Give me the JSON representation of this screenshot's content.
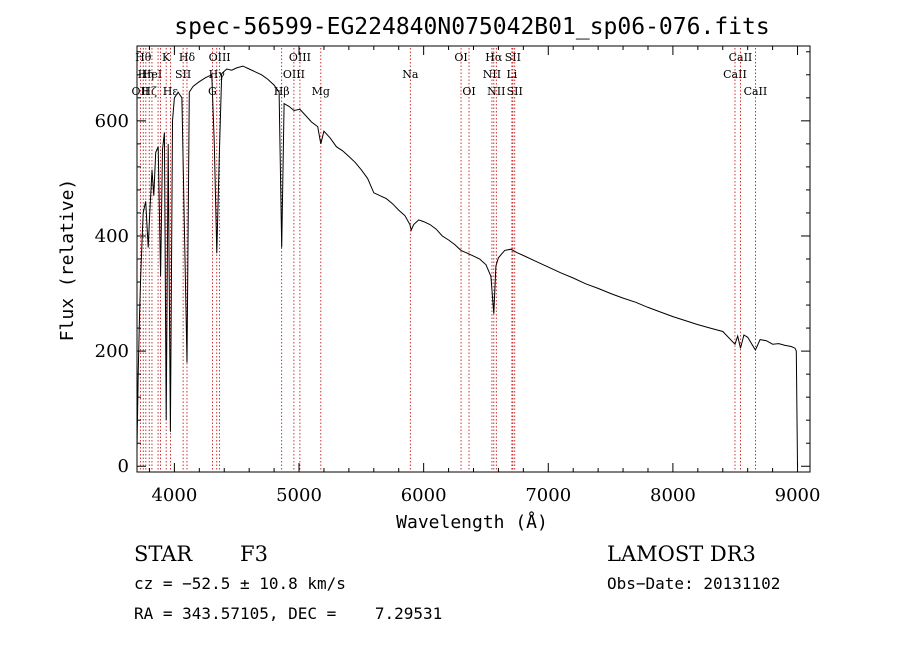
{
  "chart_data": {
    "type": "line",
    "title": "spec-56599-EG224840N075042B01_sp06-076.fits",
    "xlabel": "Wavelength (Å)",
    "ylabel": "Flux (relative)",
    "xlim": [
      3700,
      9100
    ],
    "ylim": [
      -10,
      730
    ],
    "x_ticks": [
      4000,
      5000,
      6000,
      7000,
      8000,
      9000
    ],
    "y_ticks": [
      0,
      200,
      400,
      600
    ],
    "grid": false,
    "series": [
      {
        "name": "spectrum",
        "x": [
          3700,
          3710,
          3720,
          3730,
          3740,
          3750,
          3770,
          3790,
          3800,
          3820,
          3835,
          3850,
          3870,
          3889,
          3905,
          3920,
          3934,
          3950,
          3968,
          3985,
          4000,
          4030,
          4060,
          4101,
          4120,
          4150,
          4200,
          4250,
          4300,
          4320,
          4340,
          4360,
          4380,
          4420,
          4460,
          4500,
          4550,
          4600,
          4650,
          4700,
          4750,
          4800,
          4840,
          4861,
          4880,
          4920,
          4960,
          5007,
          5050,
          5100,
          5150,
          5175,
          5200,
          5250,
          5300,
          5350,
          5400,
          5450,
          5500,
          5550,
          5600,
          5650,
          5700,
          5750,
          5800,
          5850,
          5890,
          5900,
          5920,
          5960,
          6000,
          6050,
          6100,
          6150,
          6200,
          6250,
          6300,
          6350,
          6400,
          6450,
          6500,
          6540,
          6563,
          6580,
          6600,
          6650,
          6700,
          6750,
          6800,
          6900,
          7000,
          7100,
          7200,
          7300,
          7400,
          7500,
          7600,
          7700,
          7800,
          7900,
          8000,
          8100,
          8200,
          8300,
          8400,
          8498,
          8520,
          8542,
          8570,
          8600,
          8662,
          8700,
          8750,
          8800,
          8850,
          8900,
          8950,
          8980,
          8990,
          9000
        ],
        "y": [
          30,
          160,
          260,
          330,
          390,
          440,
          460,
          380,
          430,
          515,
          470,
          545,
          555,
          330,
          550,
          580,
          80,
          560,
          60,
          600,
          640,
          650,
          640,
          180,
          650,
          660,
          668,
          675,
          680,
          560,
          370,
          540,
          682,
          690,
          688,
          692,
          695,
          690,
          685,
          680,
          672,
          662,
          650,
          380,
          630,
          625,
          618,
          620,
          610,
          598,
          590,
          560,
          582,
          570,
          555,
          548,
          538,
          528,
          515,
          500,
          475,
          470,
          465,
          456,
          445,
          435,
          420,
          410,
          420,
          428,
          425,
          420,
          412,
          400,
          393,
          385,
          375,
          370,
          365,
          360,
          350,
          330,
          265,
          348,
          362,
          375,
          377,
          371,
          366,
          356,
          346,
          336,
          327,
          317,
          309,
          300,
          292,
          285,
          276,
          268,
          260,
          253,
          246,
          240,
          234,
          212,
          226,
          205,
          228,
          224,
          202,
          220,
          218,
          212,
          213,
          210,
          208,
          205,
          200,
          0
        ]
      }
    ],
    "lines": [
      {
        "x": 3727,
        "label": "OII",
        "row": 2
      },
      {
        "x": 3750,
        "label": "Hθ",
        "row": 0
      },
      {
        "x": 3771,
        "label": "Hη",
        "row": 1
      },
      {
        "x": 3798,
        "label": "Hζ",
        "row": 2
      },
      {
        "x": 3820,
        "label": "HeI",
        "row": 1
      },
      {
        "x": 3869,
        "label": "",
        "row": 1
      },
      {
        "x": 3889,
        "label": "",
        "row": 1
      },
      {
        "x": 3934,
        "label": "K",
        "row": 0
      },
      {
        "x": 3968,
        "label": "Hε",
        "row": 2
      },
      {
        "x": 4101,
        "label": "Hδ",
        "row": 0
      },
      {
        "x": 4070,
        "label": "SII",
        "row": 1
      },
      {
        "x": 4305,
        "label": "G",
        "row": 2
      },
      {
        "x": 4340,
        "label": "Hγ",
        "row": 1
      },
      {
        "x": 4363,
        "label": "OIII",
        "row": 0
      },
      {
        "x": 4861,
        "label": "Hβ",
        "row": 2
      },
      {
        "x": 4959,
        "label": "OIII",
        "row": 1
      },
      {
        "x": 5007,
        "label": "OIII",
        "row": 0
      },
      {
        "x": 5175,
        "label": "Mg",
        "row": 2
      },
      {
        "x": 5893,
        "label": "Na",
        "row": 1
      },
      {
        "x": 6300,
        "label": "OI",
        "row": 0
      },
      {
        "x": 6364,
        "label": "OI",
        "row": 2
      },
      {
        "x": 6548,
        "label": "NII",
        "row": 1
      },
      {
        "x": 6563,
        "label": "Hα",
        "row": 0
      },
      {
        "x": 6583,
        "label": "NII",
        "row": 2
      },
      {
        "x": 6708,
        "label": "Li",
        "row": 1
      },
      {
        "x": 6716,
        "label": "SII",
        "row": 0
      },
      {
        "x": 6731,
        "label": "SII",
        "row": 2
      },
      {
        "x": 8498,
        "label": "CaII",
        "row": 1
      },
      {
        "x": 8542,
        "label": "CaII",
        "row": 0
      },
      {
        "x": 8662,
        "label": "CaII",
        "row": 2
      }
    ]
  },
  "info": {
    "object_class": "STAR",
    "subclass": "F3",
    "survey": "LAMOST DR3",
    "cz": "cz = −52.5 ± 10.8 km/s",
    "obs_date": "Obs−Date: 20131102",
    "coords": "RA = 343.57105, DEC =    7.29531"
  },
  "colors": {
    "line": "#000000",
    "marker": "#c00000"
  }
}
